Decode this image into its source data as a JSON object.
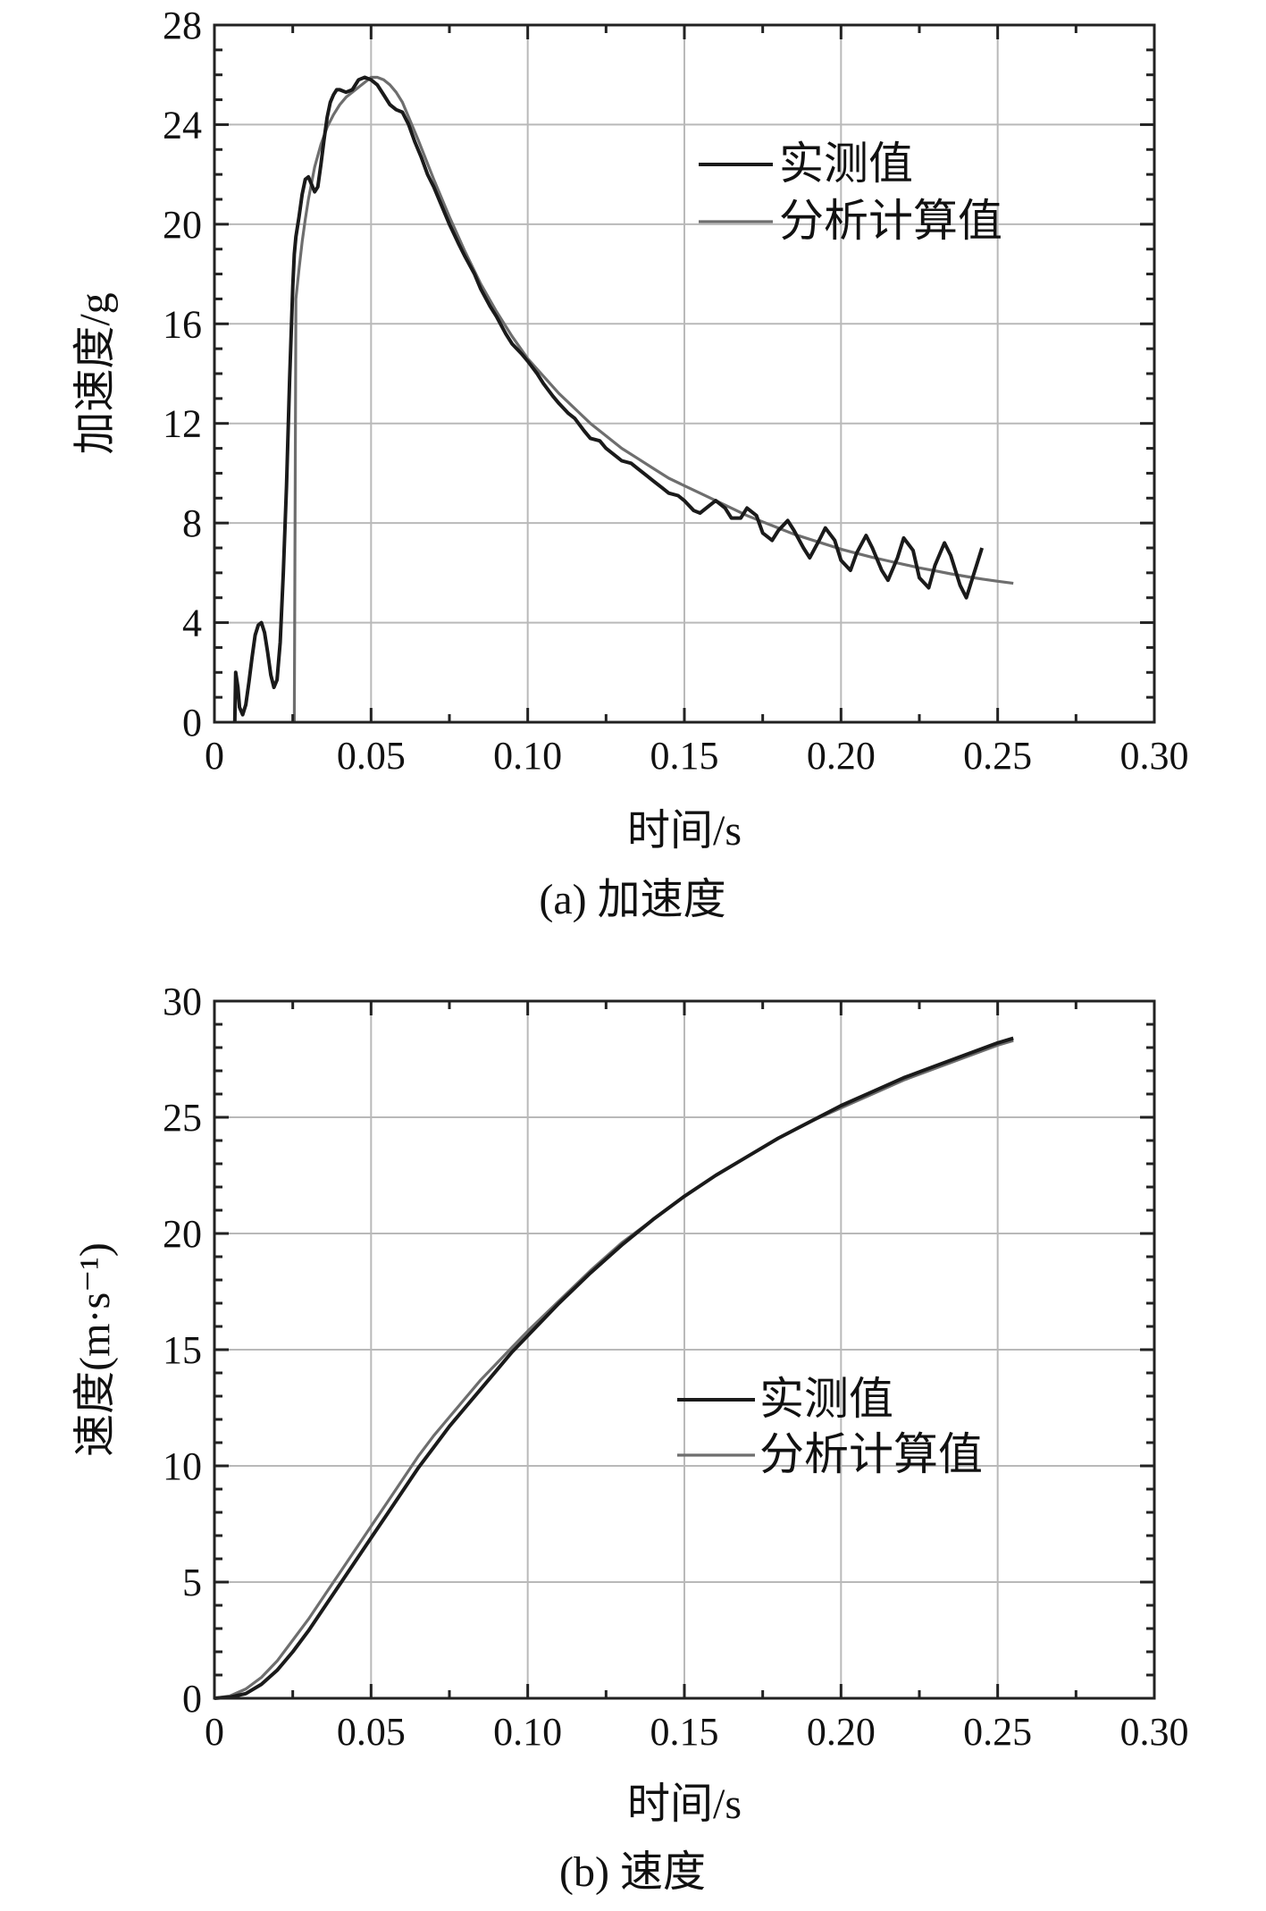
{
  "chart_data": [
    {
      "type": "line",
      "caption": "(a) 加速度",
      "xlabel": "时间/s",
      "ylabel": "加速度/g",
      "xlim": [
        0,
        0.3
      ],
      "ylim": [
        0,
        28
      ],
      "xticks": [
        "0",
        "0.05",
        "0.10",
        "0.15",
        "0.20",
        "0.25",
        "0.30"
      ],
      "yticks": [
        "0",
        "4",
        "8",
        "12",
        "16",
        "20",
        "24",
        "28"
      ],
      "grid": true,
      "legend_position": "top-right",
      "colors": {
        "measured": "#1a1a1a",
        "computed": "#6e6e6e"
      },
      "series": [
        {
          "name": "实测值",
          "x": [
            0.0065,
            0.0068,
            0.0075,
            0.008,
            0.009,
            0.01,
            0.011,
            0.012,
            0.013,
            0.014,
            0.015,
            0.016,
            0.017,
            0.018,
            0.019,
            0.02,
            0.021,
            0.022,
            0.023,
            0.024,
            0.025,
            0.0255,
            0.026,
            0.027,
            0.028,
            0.029,
            0.03,
            0.031,
            0.032,
            0.033,
            0.034,
            0.035,
            0.036,
            0.037,
            0.038,
            0.039,
            0.04,
            0.042,
            0.044,
            0.046,
            0.048,
            0.05,
            0.052,
            0.054,
            0.056,
            0.058,
            0.06,
            0.062,
            0.064,
            0.066,
            0.068,
            0.07,
            0.072,
            0.075,
            0.078,
            0.08,
            0.083,
            0.085,
            0.088,
            0.09,
            0.093,
            0.095,
            0.098,
            0.1,
            0.103,
            0.105,
            0.108,
            0.11,
            0.113,
            0.115,
            0.118,
            0.12,
            0.123,
            0.125,
            0.128,
            0.13,
            0.133,
            0.135,
            0.138,
            0.14,
            0.143,
            0.145,
            0.148,
            0.15,
            0.153,
            0.155,
            0.158,
            0.16,
            0.163,
            0.165,
            0.168,
            0.17,
            0.173,
            0.175,
            0.178,
            0.18,
            0.183,
            0.185,
            0.188,
            0.19,
            0.193,
            0.195,
            0.198,
            0.2,
            0.203,
            0.205,
            0.208,
            0.21,
            0.213,
            0.215,
            0.218,
            0.22,
            0.223,
            0.225,
            0.228,
            0.23,
            0.233,
            0.235,
            0.238,
            0.24,
            0.243,
            0.245
          ],
          "y": [
            0,
            2.0,
            1.4,
            0.6,
            0.3,
            0.7,
            1.6,
            2.6,
            3.5,
            3.9,
            4.0,
            3.6,
            2.8,
            1.9,
            1.4,
            1.7,
            3.2,
            6.0,
            9.5,
            13.8,
            17.5,
            18.8,
            19.5,
            20.3,
            21.2,
            21.8,
            21.9,
            21.6,
            21.3,
            21.5,
            22.4,
            23.4,
            24.3,
            24.9,
            25.2,
            25.4,
            25.4,
            25.3,
            25.4,
            25.8,
            25.9,
            25.8,
            25.6,
            25.2,
            24.8,
            24.6,
            24.5,
            24.0,
            23.3,
            22.7,
            22.0,
            21.5,
            20.9,
            20.0,
            19.2,
            18.7,
            18.0,
            17.4,
            16.7,
            16.3,
            15.6,
            15.2,
            14.8,
            14.5,
            14.0,
            13.6,
            13.1,
            12.8,
            12.4,
            12.2,
            11.7,
            11.4,
            11.3,
            11.0,
            10.7,
            10.5,
            10.4,
            10.2,
            9.9,
            9.7,
            9.4,
            9.2,
            9.1,
            8.9,
            8.5,
            8.4,
            8.7,
            8.9,
            8.6,
            8.2,
            8.2,
            8.6,
            8.3,
            7.6,
            7.3,
            7.7,
            8.1,
            7.7,
            7.0,
            6.6,
            7.3,
            7.8,
            7.3,
            6.5,
            6.1,
            6.8,
            7.5,
            7.0,
            6.1,
            5.7,
            6.6,
            7.4,
            6.9,
            5.8,
            5.4,
            6.3,
            7.2,
            6.7,
            5.5,
            5.0,
            6.2,
            7.0
          ]
        },
        {
          "name": "分析计算值",
          "x": [
            0.0255,
            0.026,
            0.027,
            0.028,
            0.029,
            0.03,
            0.032,
            0.034,
            0.036,
            0.038,
            0.04,
            0.042,
            0.044,
            0.046,
            0.048,
            0.05,
            0.052,
            0.054,
            0.056,
            0.058,
            0.06,
            0.065,
            0.07,
            0.075,
            0.08,
            0.085,
            0.09,
            0.095,
            0.1,
            0.105,
            0.11,
            0.115,
            0.12,
            0.125,
            0.13,
            0.135,
            0.14,
            0.145,
            0.15,
            0.155,
            0.16,
            0.165,
            0.17,
            0.175,
            0.18,
            0.185,
            0.19,
            0.195,
            0.2,
            0.205,
            0.21,
            0.215,
            0.22,
            0.225,
            0.23,
            0.235,
            0.24,
            0.245,
            0.25,
            0.255
          ],
          "y": [
            0,
            17.0,
            18.2,
            19.3,
            20.2,
            21.0,
            22.3,
            23.2,
            23.9,
            24.4,
            24.8,
            25.1,
            25.3,
            25.5,
            25.7,
            25.9,
            25.9,
            25.8,
            25.6,
            25.3,
            24.9,
            23.4,
            21.8,
            20.3,
            18.9,
            17.6,
            16.5,
            15.5,
            14.6,
            13.9,
            13.2,
            12.6,
            12.0,
            11.5,
            11.0,
            10.6,
            10.2,
            9.8,
            9.5,
            9.2,
            8.9,
            8.6,
            8.3,
            8.05,
            7.8,
            7.55,
            7.35,
            7.15,
            6.95,
            6.78,
            6.62,
            6.48,
            6.34,
            6.2,
            6.08,
            5.96,
            5.85,
            5.75,
            5.66,
            5.58
          ]
        }
      ]
    },
    {
      "type": "line",
      "caption": "(b) 速度",
      "xlabel": "时间/s",
      "ylabel": "速度(m·s⁻¹)",
      "xlim": [
        0,
        0.3
      ],
      "ylim": [
        0,
        30
      ],
      "xticks": [
        "0",
        "0.05",
        "0.10",
        "0.15",
        "0.20",
        "0.25",
        "0.30"
      ],
      "yticks": [
        "0",
        "5",
        "10",
        "15",
        "20",
        "25",
        "30"
      ],
      "grid": true,
      "legend_position": "center-right",
      "colors": {
        "measured": "#1a1a1a",
        "computed": "#6e6e6e"
      },
      "series": [
        {
          "name": "实测值",
          "x": [
            0,
            0.005,
            0.01,
            0.015,
            0.02,
            0.025,
            0.03,
            0.035,
            0.04,
            0.045,
            0.05,
            0.055,
            0.06,
            0.065,
            0.07,
            0.075,
            0.08,
            0.085,
            0.09,
            0.095,
            0.1,
            0.11,
            0.12,
            0.13,
            0.14,
            0.15,
            0.16,
            0.17,
            0.18,
            0.19,
            0.2,
            0.21,
            0.22,
            0.23,
            0.24,
            0.25,
            0.255
          ],
          "y": [
            0,
            0.05,
            0.2,
            0.6,
            1.2,
            2.0,
            2.9,
            3.9,
            4.9,
            5.9,
            6.9,
            7.9,
            8.9,
            9.9,
            10.8,
            11.7,
            12.5,
            13.3,
            14.1,
            14.9,
            15.6,
            17.0,
            18.3,
            19.5,
            20.6,
            21.6,
            22.5,
            23.3,
            24.1,
            24.8,
            25.5,
            26.1,
            26.7,
            27.2,
            27.7,
            28.2,
            28.4
          ]
        },
        {
          "name": "分析计算值",
          "x": [
            0,
            0.005,
            0.01,
            0.015,
            0.02,
            0.025,
            0.03,
            0.035,
            0.04,
            0.045,
            0.05,
            0.055,
            0.06,
            0.065,
            0.07,
            0.075,
            0.08,
            0.085,
            0.09,
            0.095,
            0.1,
            0.11,
            0.12,
            0.13,
            0.14,
            0.15,
            0.16,
            0.17,
            0.18,
            0.19,
            0.2,
            0.21,
            0.22,
            0.23,
            0.24,
            0.25,
            0.255
          ],
          "y": [
            0,
            0.1,
            0.4,
            0.9,
            1.6,
            2.5,
            3.4,
            4.4,
            5.4,
            6.4,
            7.4,
            8.4,
            9.4,
            10.4,
            11.3,
            12.1,
            12.9,
            13.7,
            14.4,
            15.1,
            15.8,
            17.1,
            18.4,
            19.6,
            20.6,
            21.6,
            22.5,
            23.3,
            24.1,
            24.8,
            25.4,
            26.0,
            26.6,
            27.1,
            27.6,
            28.1,
            28.3
          ]
        }
      ]
    }
  ]
}
